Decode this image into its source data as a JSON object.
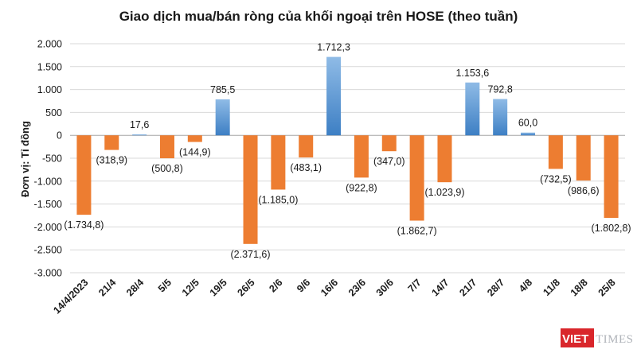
{
  "chart_data": {
    "type": "bar",
    "title": "Giao dịch mua/bán ròng của khối ngoại trên HOSE (theo tuần)",
    "xlabel": "",
    "ylabel": "Đơn vị: Tỉ đồng",
    "ylim": [
      -3000,
      2000
    ],
    "yticks": [
      2000,
      1500,
      1000,
      500,
      0,
      -500,
      -1000,
      -1500,
      -2000,
      -2500,
      -3000
    ],
    "ytick_labels": [
      "2.000",
      "1.500",
      "1.000",
      "500",
      "0",
      "-500",
      "-1.000",
      "-1.500",
      "-2.000",
      "-2.500",
      "-3.000"
    ],
    "grid": true,
    "categories": [
      "14/4/2023",
      "21/4",
      "28/4",
      "5/5",
      "12/5",
      "19/5",
      "26/5",
      "2/6",
      "9/6",
      "16/6",
      "23/6",
      "30/6",
      "7/7",
      "14/7",
      "21/7",
      "28/7",
      "4/8",
      "11/8",
      "18/8",
      "25/8"
    ],
    "values": [
      -1734.8,
      -318.9,
      17.6,
      -500.8,
      -144.9,
      785.5,
      -2371.6,
      -1185.0,
      -483.1,
      1712.3,
      -922.8,
      -347.0,
      -1862.7,
      -1023.9,
      1153.6,
      792.8,
      60.0,
      -732.5,
      -986.6,
      -1802.8
    ],
    "data_labels": [
      "(1.734,8)",
      "(318,9)",
      "17,6",
      "(500,8)",
      "(144,9)",
      "785,5",
      "(2.371,6)",
      "(1.185,0)",
      "(483,1)",
      "1.712,3",
      "(922,8)",
      "(347,0)",
      "(1.862,7)",
      "(1.023,9)",
      "1.153,6",
      "792,8",
      "60,0",
      "(732,5)",
      "(986,6)",
      "(1.802,8)"
    ],
    "colors": {
      "positive_top": "#8fbbe6",
      "positive_bottom": "#3d7fc4",
      "negative": "#ed7d31",
      "logo_red": "#d9262b",
      "logo_gray": "#b0b4ba"
    }
  },
  "logo": {
    "part1": "VIET",
    "part2": "TIMES"
  }
}
